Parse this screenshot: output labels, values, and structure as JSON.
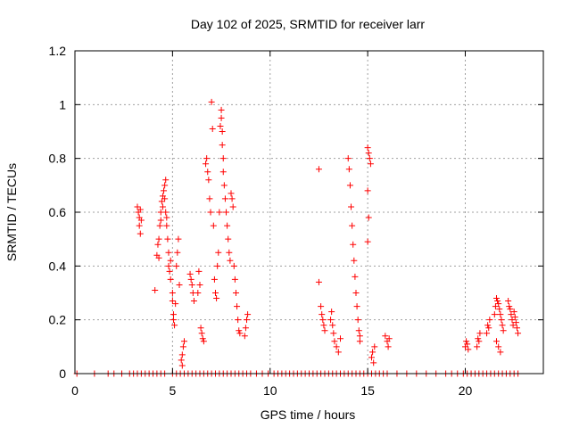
{
  "chart_data": {
    "type": "scatter",
    "title": "Day 102 of 2025, SRMTID for receiver larr",
    "xlabel": "GPS time / hours",
    "ylabel": "SRMTID / TECUs",
    "xlim": [
      0,
      24
    ],
    "ylim": [
      0,
      1.2
    ],
    "xticks": [
      0,
      5,
      10,
      15,
      20
    ],
    "yticks": [
      0,
      0.2,
      0.4,
      0.6,
      0.8,
      1,
      1.2
    ],
    "xtick_labels": [
      "0",
      "5",
      "10",
      "15",
      "20"
    ],
    "ytick_labels": [
      "0",
      "0.2",
      "0.4",
      "0.6",
      "0.8",
      "1",
      "1.2"
    ],
    "grid": true,
    "marker": "+",
    "color": "#ff0000",
    "series": [
      {
        "name": "SRMTID",
        "points": [
          [
            3.2,
            0.62
          ],
          [
            3.25,
            0.6
          ],
          [
            3.3,
            0.58
          ],
          [
            3.3,
            0.55
          ],
          [
            3.35,
            0.52
          ],
          [
            3.35,
            0.61
          ],
          [
            3.4,
            0.57
          ],
          [
            4.1,
            0.31
          ],
          [
            4.2,
            0.44
          ],
          [
            4.25,
            0.48
          ],
          [
            4.3,
            0.5
          ],
          [
            4.3,
            0.43
          ],
          [
            4.35,
            0.55
          ],
          [
            4.4,
            0.57
          ],
          [
            4.4,
            0.6
          ],
          [
            4.45,
            0.64
          ],
          [
            4.5,
            0.62
          ],
          [
            4.5,
            0.66
          ],
          [
            4.55,
            0.68
          ],
          [
            4.6,
            0.7
          ],
          [
            4.6,
            0.65
          ],
          [
            4.65,
            0.72
          ],
          [
            4.65,
            0.6
          ],
          [
            4.7,
            0.58
          ],
          [
            4.7,
            0.55
          ],
          [
            4.75,
            0.5
          ],
          [
            4.8,
            0.45
          ],
          [
            4.8,
            0.4
          ],
          [
            4.85,
            0.38
          ],
          [
            4.9,
            0.35
          ],
          [
            4.9,
            0.42
          ],
          [
            5.0,
            0.3
          ],
          [
            5.0,
            0.27
          ],
          [
            5.05,
            0.22
          ],
          [
            5.05,
            0.2
          ],
          [
            5.1,
            0.18
          ],
          [
            5.15,
            0.26
          ],
          [
            5.2,
            0.4
          ],
          [
            5.25,
            0.45
          ],
          [
            5.3,
            0.5
          ],
          [
            5.35,
            0.33
          ],
          [
            5.45,
            0.05
          ],
          [
            5.5,
            0.07
          ],
          [
            5.55,
            0.1
          ],
          [
            5.6,
            0.12
          ],
          [
            5.5,
            0.03
          ],
          [
            5.9,
            0.37
          ],
          [
            5.95,
            0.35
          ],
          [
            6.0,
            0.33
          ],
          [
            6.05,
            0.3
          ],
          [
            6.1,
            0.27
          ],
          [
            6.3,
            0.3
          ],
          [
            6.35,
            0.38
          ],
          [
            6.4,
            0.33
          ],
          [
            6.45,
            0.17
          ],
          [
            6.5,
            0.15
          ],
          [
            6.55,
            0.13
          ],
          [
            6.6,
            0.12
          ],
          [
            6.7,
            0.78
          ],
          [
            6.75,
            0.8
          ],
          [
            6.8,
            0.75
          ],
          [
            6.85,
            0.72
          ],
          [
            6.9,
            0.65
          ],
          [
            6.95,
            0.6
          ],
          [
            7.0,
            1.01
          ],
          [
            7.05,
            0.91
          ],
          [
            7.1,
            0.55
          ],
          [
            7.15,
            0.35
          ],
          [
            7.2,
            0.3
          ],
          [
            7.25,
            0.28
          ],
          [
            7.3,
            0.4
          ],
          [
            7.35,
            0.45
          ],
          [
            7.4,
            0.6
          ],
          [
            7.45,
            0.92
          ],
          [
            7.5,
            0.98
          ],
          [
            7.5,
            0.95
          ],
          [
            7.55,
            0.9
          ],
          [
            7.55,
            0.85
          ],
          [
            7.6,
            0.8
          ],
          [
            7.6,
            0.75
          ],
          [
            7.65,
            0.7
          ],
          [
            7.7,
            0.65
          ],
          [
            7.75,
            0.6
          ],
          [
            7.8,
            0.55
          ],
          [
            7.85,
            0.5
          ],
          [
            7.9,
            0.45
          ],
          [
            7.95,
            0.42
          ],
          [
            8.0,
            0.67
          ],
          [
            8.05,
            0.65
          ],
          [
            8.1,
            0.62
          ],
          [
            8.15,
            0.4
          ],
          [
            8.2,
            0.35
          ],
          [
            8.25,
            0.3
          ],
          [
            8.3,
            0.25
          ],
          [
            8.35,
            0.2
          ],
          [
            8.4,
            0.16
          ],
          [
            8.45,
            0.15
          ],
          [
            8.7,
            0.14
          ],
          [
            8.75,
            0.17
          ],
          [
            8.8,
            0.2
          ],
          [
            8.85,
            0.22
          ],
          [
            12.5,
            0.76
          ],
          [
            12.5,
            0.34
          ],
          [
            12.6,
            0.25
          ],
          [
            12.65,
            0.22
          ],
          [
            12.7,
            0.2
          ],
          [
            12.75,
            0.18
          ],
          [
            12.8,
            0.16
          ],
          [
            13.1,
            0.2
          ],
          [
            13.15,
            0.23
          ],
          [
            13.2,
            0.18
          ],
          [
            13.25,
            0.15
          ],
          [
            13.3,
            0.12
          ],
          [
            13.4,
            0.1
          ],
          [
            13.5,
            0.08
          ],
          [
            13.6,
            0.13
          ],
          [
            14.0,
            0.8
          ],
          [
            14.05,
            0.76
          ],
          [
            14.1,
            0.7
          ],
          [
            14.15,
            0.62
          ],
          [
            14.2,
            0.55
          ],
          [
            14.25,
            0.48
          ],
          [
            14.3,
            0.42
          ],
          [
            14.35,
            0.36
          ],
          [
            14.4,
            0.3
          ],
          [
            14.45,
            0.25
          ],
          [
            14.5,
            0.2
          ],
          [
            14.55,
            0.16
          ],
          [
            14.6,
            0.14
          ],
          [
            14.6,
            0.12
          ],
          [
            15.0,
            0.84
          ],
          [
            15.05,
            0.82
          ],
          [
            15.1,
            0.8
          ],
          [
            15.15,
            0.78
          ],
          [
            15.0,
            0.68
          ],
          [
            15.05,
            0.58
          ],
          [
            15.0,
            0.49
          ],
          [
            15.2,
            0.06
          ],
          [
            15.25,
            0.08
          ],
          [
            15.3,
            0.04
          ],
          [
            15.35,
            0.1
          ],
          [
            15.9,
            0.14
          ],
          [
            16.0,
            0.12
          ],
          [
            16.05,
            0.1
          ],
          [
            16.1,
            0.13
          ],
          [
            20.0,
            0.1
          ],
          [
            20.05,
            0.12
          ],
          [
            20.1,
            0.11
          ],
          [
            20.15,
            0.09
          ],
          [
            20.6,
            0.1
          ],
          [
            20.65,
            0.13
          ],
          [
            20.7,
            0.12
          ],
          [
            20.75,
            0.15
          ],
          [
            21.1,
            0.15
          ],
          [
            21.15,
            0.18
          ],
          [
            21.2,
            0.17
          ],
          [
            21.25,
            0.2
          ],
          [
            21.5,
            0.22
          ],
          [
            21.55,
            0.25
          ],
          [
            21.6,
            0.28
          ],
          [
            21.65,
            0.27
          ],
          [
            21.7,
            0.26
          ],
          [
            21.75,
            0.24
          ],
          [
            21.8,
            0.22
          ],
          [
            21.85,
            0.2
          ],
          [
            21.9,
            0.18
          ],
          [
            21.95,
            0.16
          ],
          [
            21.6,
            0.12
          ],
          [
            21.7,
            0.1
          ],
          [
            21.8,
            0.08
          ],
          [
            22.2,
            0.27
          ],
          [
            22.25,
            0.25
          ],
          [
            22.3,
            0.24
          ],
          [
            22.35,
            0.22
          ],
          [
            22.4,
            0.2
          ],
          [
            22.45,
            0.18
          ],
          [
            22.5,
            0.23
          ],
          [
            22.55,
            0.21
          ],
          [
            22.6,
            0.19
          ],
          [
            22.65,
            0.17
          ],
          [
            22.7,
            0.15
          ]
        ]
      }
    ],
    "zero_points_x": [
      0.1,
      1.0,
      1.7,
      2.0,
      2.4,
      2.8,
      3.0,
      3.2,
      3.4,
      3.6,
      3.8,
      4.0,
      4.2,
      4.4,
      4.6,
      5.0,
      5.2,
      5.4,
      5.6,
      5.8,
      6.0,
      6.2,
      6.4,
      6.6,
      6.8,
      7.0,
      7.2,
      7.4,
      7.6,
      7.8,
      8.0,
      8.2,
      8.4,
      8.6,
      8.8,
      9.0,
      9.3,
      9.6,
      9.9,
      10.2,
      10.4,
      10.6,
      10.8,
      11.0,
      11.2,
      11.4,
      11.6,
      11.8,
      12.0,
      12.2,
      12.4,
      12.6,
      12.8,
      13.0,
      13.2,
      13.4,
      13.6,
      13.8,
      14.0,
      14.2,
      14.4,
      14.6,
      14.8,
      15.0,
      15.2,
      15.4,
      15.6,
      15.8,
      16.0,
      16.5,
      17.0,
      17.5,
      18.0,
      18.5,
      19.0,
      19.3,
      19.6,
      19.9,
      20.1,
      20.3,
      20.5,
      20.7,
      20.9,
      21.1,
      21.3,
      21.5,
      21.7,
      21.9,
      22.1,
      22.3,
      22.5,
      22.7
    ]
  }
}
